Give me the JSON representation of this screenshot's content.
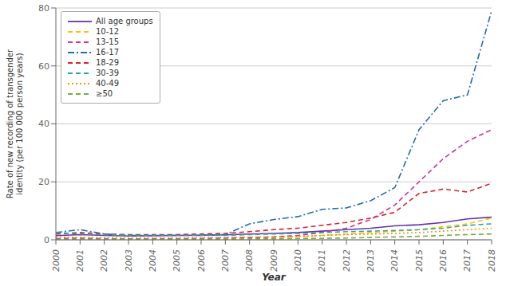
{
  "chart_data": {
    "type": "line",
    "x": [
      2000,
      2001,
      2002,
      2003,
      2004,
      2005,
      2006,
      2007,
      2008,
      2009,
      2010,
      2011,
      2012,
      2013,
      2014,
      2015,
      2016,
      2017,
      2018
    ],
    "series": [
      {
        "name": "All age groups",
        "color": "#6633AA",
        "line_style": "solid",
        "values": [
          1.45,
          1.8,
          1.5,
          1.3,
          1.4,
          1.5,
          1.6,
          1.7,
          2.0,
          2.2,
          2.5,
          3.0,
          3.5,
          4.0,
          4.8,
          5.2,
          6.0,
          7.2,
          7.81
        ]
      },
      {
        "name": "10-12",
        "color": "#FFC000",
        "line_style": "dashed",
        "values": [
          0.3,
          0.5,
          0.3,
          0.2,
          0.3,
          0.3,
          0.3,
          0.4,
          0.5,
          0.8,
          1.0,
          1.5,
          2.0,
          2.5,
          3.0,
          3.5,
          4.5,
          5.5,
          7.5
        ]
      },
      {
        "name": "13-15",
        "color": "#CC3399",
        "line_style": "dashed",
        "values": [
          0.4,
          0.6,
          0.4,
          0.3,
          0.4,
          0.4,
          0.5,
          0.6,
          0.8,
          1.0,
          1.5,
          2.5,
          4.0,
          7.0,
          12.0,
          20.0,
          28.0,
          34.0,
          38.0
        ]
      },
      {
        "name": "16-17",
        "color": "#1F6BB5",
        "line_style": "dashdot",
        "values": [
          2.5,
          3.5,
          2.0,
          1.5,
          1.5,
          1.5,
          1.5,
          1.8,
          5.5,
          7.0,
          8.0,
          10.5,
          11.0,
          13.5,
          18.0,
          38.0,
          48.0,
          50.0,
          79.0
        ]
      },
      {
        "name": "18-29",
        "color": "#DD2222",
        "line_style": "dashed",
        "values": [
          2.0,
          2.5,
          2.0,
          1.8,
          1.8,
          1.8,
          2.0,
          2.2,
          2.8,
          3.5,
          4.0,
          5.0,
          6.0,
          7.5,
          9.5,
          16.0,
          17.5,
          16.5,
          19.5
        ]
      },
      {
        "name": "30-39",
        "color": "#22AAAA",
        "line_style": "dashed",
        "values": [
          2.5,
          2.0,
          1.8,
          1.5,
          1.5,
          1.5,
          1.5,
          1.5,
          1.8,
          2.0,
          2.2,
          2.5,
          2.8,
          3.0,
          3.2,
          3.5,
          4.0,
          5.0,
          5.5
        ]
      },
      {
        "name": "40-49",
        "color": "#FF8C00",
        "line_style": "dotted",
        "values": [
          1.0,
          0.8,
          0.7,
          0.6,
          0.6,
          0.6,
          0.7,
          0.8,
          0.9,
          1.0,
          1.2,
          1.5,
          1.8,
          2.0,
          2.2,
          2.5,
          3.0,
          3.5,
          4.0
        ]
      },
      {
        "name": "≥50",
        "color": "#70AD47",
        "line_style": "dashed",
        "values": [
          0.2,
          0.2,
          0.2,
          0.2,
          0.2,
          0.2,
          0.2,
          0.2,
          0.3,
          0.3,
          0.4,
          0.5,
          0.6,
          0.8,
          1.0,
          1.2,
          1.5,
          1.8,
          2.0
        ]
      }
    ],
    "x_label": "Year",
    "y_label": "Rate of new recording of transgender\nidentity (per 100 000 person years)",
    "xlim": [
      2000,
      2018
    ],
    "xticks": [
      2000,
      2001,
      2002,
      2003,
      2004,
      2005,
      2006,
      2007,
      2008,
      2009,
      2010,
      2011,
      2012,
      2013,
      2014,
      2015,
      2016,
      2017,
      2018
    ],
    "ylim": [
      0,
      80
    ],
    "yticks": [
      0,
      20,
      40,
      60,
      80
    ],
    "grid": true,
    "legend": "upper left"
  }
}
